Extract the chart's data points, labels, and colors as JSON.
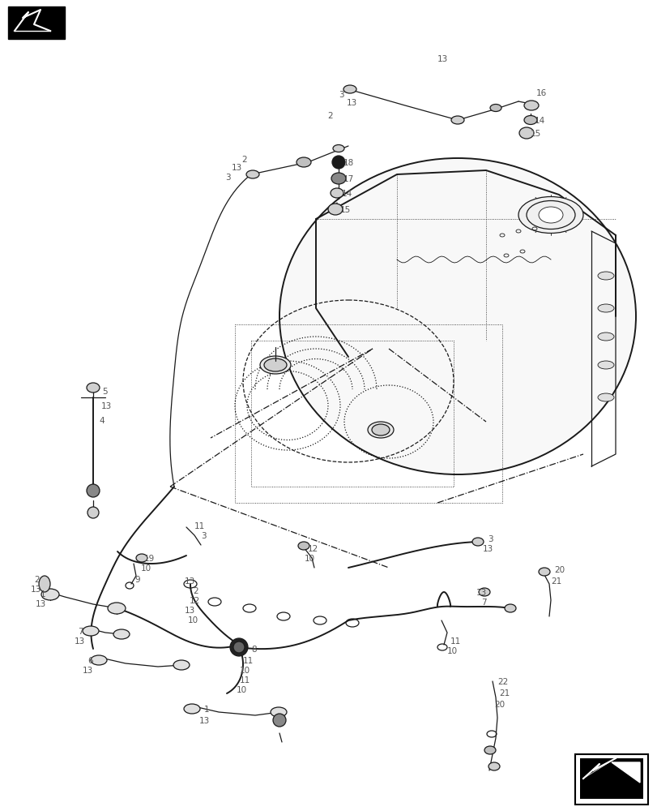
{
  "bg_color": "#ffffff",
  "line_color": "#1a1a1a",
  "label_color": "#555555",
  "fig_width": 8.12,
  "fig_height": 10.0,
  "dpi": 100
}
